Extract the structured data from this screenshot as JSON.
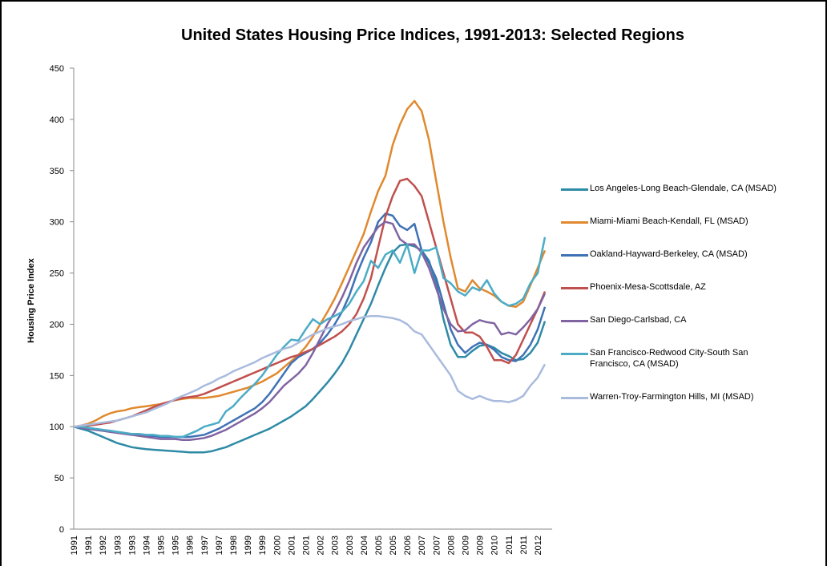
{
  "chart_data": {
    "type": "line",
    "title": "United States Housing Price Indices, 1991-2013:  Selected Regions",
    "y_label": "Housing Price Index",
    "categories": [
      "1991",
      null,
      "1991",
      null,
      "1992",
      null,
      "1993",
      null,
      "1993",
      null,
      "1994",
      null,
      "1995",
      null,
      "1995",
      null,
      "1996",
      null,
      "1997",
      null,
      "1997",
      null,
      "1998",
      null,
      "1999",
      null,
      "1999",
      null,
      "2000",
      null,
      "2001",
      null,
      "2001",
      null,
      "2002",
      null,
      "2003",
      null,
      "2003",
      null,
      "2004",
      null,
      "2005",
      null,
      "2005",
      null,
      "2006",
      null,
      "2007",
      null,
      "2007",
      null,
      "2008",
      null,
      "2009",
      null,
      "2009",
      null,
      "2010",
      null,
      "2011",
      null,
      "2011",
      null,
      "2012",
      null
    ],
    "ylim": [
      0,
      450
    ],
    "yticks": [
      0,
      50,
      100,
      150,
      200,
      250,
      300,
      350,
      400,
      450
    ],
    "grid": false,
    "legend": "right",
    "series": [
      {
        "name": "Los Angeles-Long Beach-Glendale, CA  (MSAD)",
        "color": "#2e8aa6",
        "values": [
          100,
          98,
          96,
          93,
          90,
          87,
          84,
          82,
          80,
          79,
          78,
          77.5,
          77,
          76.5,
          76,
          75.5,
          75,
          75,
          75,
          76,
          78,
          80,
          83,
          86,
          89,
          92,
          95,
          98,
          102,
          106,
          110,
          115,
          120,
          127,
          135,
          143,
          152,
          162,
          175,
          190,
          205,
          220,
          238,
          255,
          270,
          277,
          278,
          276,
          272,
          262,
          240,
          205,
          180,
          168,
          168,
          174,
          179,
          180,
          177,
          172,
          169,
          165,
          166,
          172,
          182,
          203
        ]
      },
      {
        "name": "Miami-Miami Beach-Kendall, FL  (MSAD)",
        "color": "#e0892f",
        "values": [
          100,
          101,
          103,
          106,
          110,
          113,
          115,
          116,
          118,
          119,
          120,
          121,
          122,
          124,
          126,
          127,
          128,
          128,
          128,
          129,
          130,
          132,
          134,
          136,
          138,
          141,
          144,
          148,
          152,
          158,
          164,
          170,
          178,
          188,
          200,
          212,
          225,
          240,
          256,
          272,
          288,
          310,
          330,
          345,
          375,
          395,
          410,
          418,
          408,
          380,
          340,
          300,
          265,
          235,
          232,
          243,
          235,
          232,
          228,
          222,
          218,
          217,
          222,
          238,
          255,
          272
        ]
      },
      {
        "name": "Oakland-Hayward-Berkeley, CA  (MSAD)",
        "color": "#3f72b5",
        "values": [
          100,
          99,
          98,
          97,
          96,
          95,
          94,
          93,
          92,
          92,
          91,
          91,
          90,
          90,
          90,
          90,
          90,
          91,
          92,
          95,
          98,
          102,
          106,
          110,
          114,
          118,
          124,
          132,
          142,
          152,
          162,
          168,
          172,
          176,
          182,
          190,
          200,
          212,
          228,
          248,
          265,
          280,
          300,
          308,
          306,
          296,
          292,
          298,
          272,
          260,
          245,
          220,
          195,
          180,
          172,
          178,
          182,
          180,
          175,
          168,
          165,
          164,
          170,
          180,
          195,
          217
        ]
      },
      {
        "name": "Phoenix-Mesa-Scottsdale, AZ",
        "color": "#c0504d",
        "values": [
          100,
          100,
          101,
          102,
          103,
          104,
          106,
          108,
          110,
          113,
          116,
          119,
          122,
          124,
          126,
          128,
          129,
          130,
          132,
          135,
          138,
          141,
          144,
          147,
          150,
          153,
          156,
          159,
          162,
          165,
          168,
          170,
          173,
          176,
          180,
          184,
          188,
          193,
          200,
          210,
          225,
          245,
          275,
          305,
          325,
          340,
          342,
          335,
          325,
          300,
          275,
          250,
          225,
          200,
          192,
          192,
          188,
          178,
          165,
          165,
          162,
          170,
          185,
          200,
          215,
          232
        ]
      },
      {
        "name": "San Diego-Carlsbad, CA",
        "color": "#8064a2",
        "values": [
          100,
          99,
          98,
          97,
          96,
          95,
          94,
          93,
          92,
          91,
          90,
          89,
          88,
          88,
          88,
          87,
          87,
          88,
          89,
          91,
          94,
          97,
          101,
          105,
          109,
          113,
          118,
          124,
          132,
          140,
          146,
          152,
          160,
          172,
          186,
          200,
          212,
          226,
          242,
          260,
          275,
          285,
          295,
          300,
          298,
          283,
          278,
          278,
          270,
          255,
          235,
          215,
          200,
          193,
          194,
          200,
          204,
          202,
          201,
          190,
          192,
          190,
          197,
          205,
          215,
          230
        ]
      },
      {
        "name": "San Francisco-Redwood City-South San Francisco, CA  (MSAD)",
        "color": "#4bacc6",
        "values": [
          100,
          100,
          99,
          98,
          97,
          96,
          95,
          94,
          93,
          93,
          92,
          92,
          91,
          91,
          90,
          90,
          93,
          96,
          100,
          102,
          104,
          115,
          120,
          128,
          135,
          142,
          150,
          160,
          170,
          178,
          185,
          184,
          195,
          205,
          200,
          205,
          208,
          212,
          220,
          232,
          242,
          262,
          255,
          268,
          272,
          260,
          278,
          250,
          272,
          272,
          275,
          245,
          240,
          232,
          228,
          236,
          233,
          243,
          230,
          222,
          218,
          220,
          225,
          240,
          250,
          285
        ]
      },
      {
        "name": "Warren-Troy-Farmington Hills, MI  (MSAD)",
        "color": "#a9bbdd",
        "values": [
          100,
          101,
          102,
          103,
          104,
          105,
          106,
          108,
          110,
          112,
          114,
          117,
          120,
          123,
          127,
          130,
          133,
          136,
          140,
          143,
          147,
          150,
          154,
          157,
          160,
          163,
          167,
          170,
          173,
          176,
          178,
          182,
          186,
          190,
          193,
          196,
          198,
          200,
          203,
          205,
          207,
          208,
          208,
          207,
          206,
          204,
          200,
          193,
          190,
          180,
          170,
          160,
          150,
          135,
          130,
          127,
          130,
          127,
          125,
          125,
          124,
          126,
          130,
          140,
          148,
          161
        ]
      }
    ]
  }
}
